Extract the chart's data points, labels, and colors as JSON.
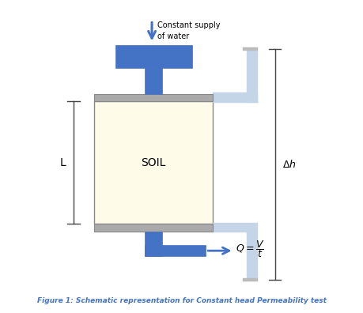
{
  "fig_width": 4.59,
  "fig_height": 3.96,
  "dpi": 100,
  "background": "#ffffff",
  "blue_dark": "#4472C4",
  "blue_light": "#C5D5E8",
  "gray": "#AAAAAA",
  "soil_fill": "#FEFBE8",
  "figure_caption": "Figure 1: Schematic representation for Constant head Permeability test",
  "caption_color": "#4472C4",
  "text_color": "#000000",
  "xlim": [
    0,
    10
  ],
  "ylim": [
    0,
    10
  ]
}
